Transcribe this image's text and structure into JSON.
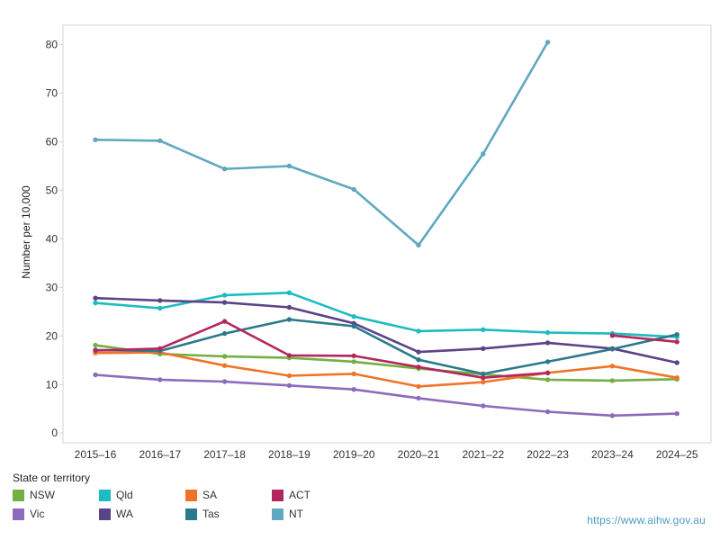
{
  "chart_data": {
    "type": "line",
    "title": "",
    "xlabel": "",
    "ylabel": "Number per 10,000",
    "ylim": [
      -2,
      84
    ],
    "yticks": [
      0,
      10,
      20,
      30,
      40,
      50,
      60,
      70,
      80
    ],
    "grid": false,
    "legend_position": "bottom-left",
    "categories": [
      "2015–16",
      "2016–17",
      "2017–18",
      "2018–19",
      "2019–20",
      "2020–21",
      "2021–22",
      "2022–23",
      "2023–24",
      "2024–25"
    ],
    "series": [
      {
        "name": "NSW",
        "color": "#72b043",
        "values": [
          18.1,
          16.3,
          15.8,
          15.5,
          14.7,
          13.3,
          12.1,
          11.0,
          10.8,
          11.1
        ]
      },
      {
        "name": "Vic",
        "color": "#8c6bbd",
        "values": [
          12.0,
          11.0,
          10.6,
          9.8,
          9.0,
          7.2,
          5.6,
          4.4,
          3.6,
          4.0
        ]
      },
      {
        "name": "Qld",
        "color": "#1cbcc2",
        "values": [
          26.8,
          25.7,
          28.4,
          28.9,
          24.0,
          21.0,
          21.3,
          20.7,
          20.5,
          19.8
        ]
      },
      {
        "name": "WA",
        "color": "#5b4387",
        "values": [
          27.8,
          27.3,
          26.9,
          25.9,
          22.6,
          16.7,
          17.4,
          18.6,
          17.4,
          14.5
        ]
      },
      {
        "name": "SA",
        "color": "#f07428",
        "values": [
          16.5,
          16.6,
          13.9,
          11.8,
          12.2,
          9.6,
          10.5,
          12.4,
          13.8,
          11.4
        ]
      },
      {
        "name": "Tas",
        "color": "#2b7a8c",
        "values": [
          17.1,
          16.9,
          20.5,
          23.4,
          22.0,
          15.1,
          12.2,
          14.7,
          17.3,
          20.3
        ]
      },
      {
        "name": "ACT",
        "color": "#b3275c",
        "values": [
          17.0,
          17.4,
          23.0,
          16.0,
          15.9,
          13.6,
          11.4,
          12.4,
          null,
          null
        ]
      },
      {
        "name": "ACT",
        "color": "#b3275c",
        "values": [
          null,
          null,
          null,
          null,
          null,
          null,
          null,
          null,
          20.1,
          18.8
        ],
        "legend": false
      },
      {
        "name": "NT",
        "color": "#5fa8c0",
        "values": [
          60.4,
          60.2,
          54.4,
          55.0,
          50.2,
          38.7,
          57.5,
          80.5,
          null,
          null
        ]
      }
    ]
  },
  "legend": {
    "title": "State or territory",
    "items": [
      {
        "label": "NSW",
        "color": "#72b043"
      },
      {
        "label": "Qld",
        "color": "#1cbcc2"
      },
      {
        "label": "SA",
        "color": "#f07428"
      },
      {
        "label": "ACT",
        "color": "#b3275c"
      },
      {
        "label": "Vic",
        "color": "#8c6bbd"
      },
      {
        "label": "WA",
        "color": "#5b4387"
      },
      {
        "label": "Tas",
        "color": "#2b7a8c"
      },
      {
        "label": "NT",
        "color": "#5fa8c0"
      }
    ]
  },
  "source": {
    "text": "https://www.aihw.gov.au"
  }
}
